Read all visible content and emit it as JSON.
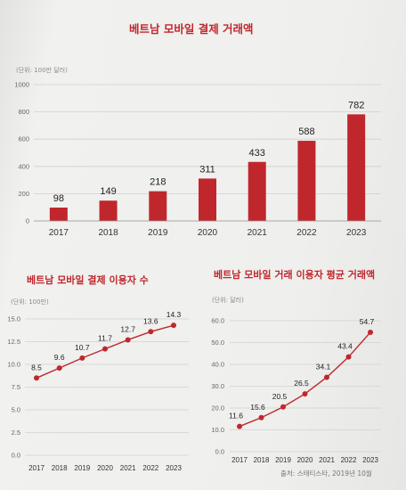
{
  "chart_data": [
    {
      "type": "bar",
      "title": "베트남 모바일 결제 거래액",
      "unit_note": "(단위: 100만 달러)",
      "categories": [
        "2017",
        "2018",
        "2019",
        "2020",
        "2021",
        "2022",
        "2023"
      ],
      "values": [
        98,
        149,
        218,
        311,
        433,
        588,
        782
      ],
      "ylim": [
        0,
        1000
      ],
      "yticks": [
        "0",
        "200",
        "400",
        "600",
        "800",
        "1000"
      ],
      "grid": true,
      "color": "#c0272d"
    },
    {
      "type": "line",
      "title": "베트남 모바일 결제 이용자 수",
      "unit_note": "(단위: 100만)",
      "x": [
        "2017",
        "2018",
        "2019",
        "2020",
        "2021",
        "2022",
        "2023"
      ],
      "values": [
        8.5,
        9.6,
        10.7,
        11.7,
        12.7,
        13.6,
        14.3
      ],
      "value_labels": [
        "8.5",
        "9.6",
        "10.7",
        "11.7",
        "12.7",
        "13.6",
        "14.3"
      ],
      "ylim": [
        0,
        15
      ],
      "yticks": [
        "0.0",
        "2.5",
        "5.0",
        "7.5",
        "10.0",
        "12.5",
        "15.0"
      ],
      "grid": true,
      "color": "#c0272d"
    },
    {
      "type": "line",
      "title": "베트남 모바일 거래 이용자 평균 거래액",
      "unit_note": "(단위: 달러)",
      "x": [
        "2017",
        "2018",
        "2019",
        "2020",
        "2021",
        "2022",
        "2023"
      ],
      "values": [
        11.6,
        15.6,
        20.5,
        26.5,
        34.1,
        43.4,
        54.7
      ],
      "value_labels": [
        "11.6",
        "15.6",
        "20.5",
        "26.5",
        "34.1",
        "43.4",
        "54.7"
      ],
      "ylim": [
        0,
        60
      ],
      "yticks": [
        "0.0",
        "10.0",
        "20.0",
        "30.0",
        "40.0",
        "50.0",
        "60.0"
      ],
      "grid": true,
      "color": "#c0272d"
    }
  ],
  "source": "출처: 스태티스타, 2019년 10월"
}
